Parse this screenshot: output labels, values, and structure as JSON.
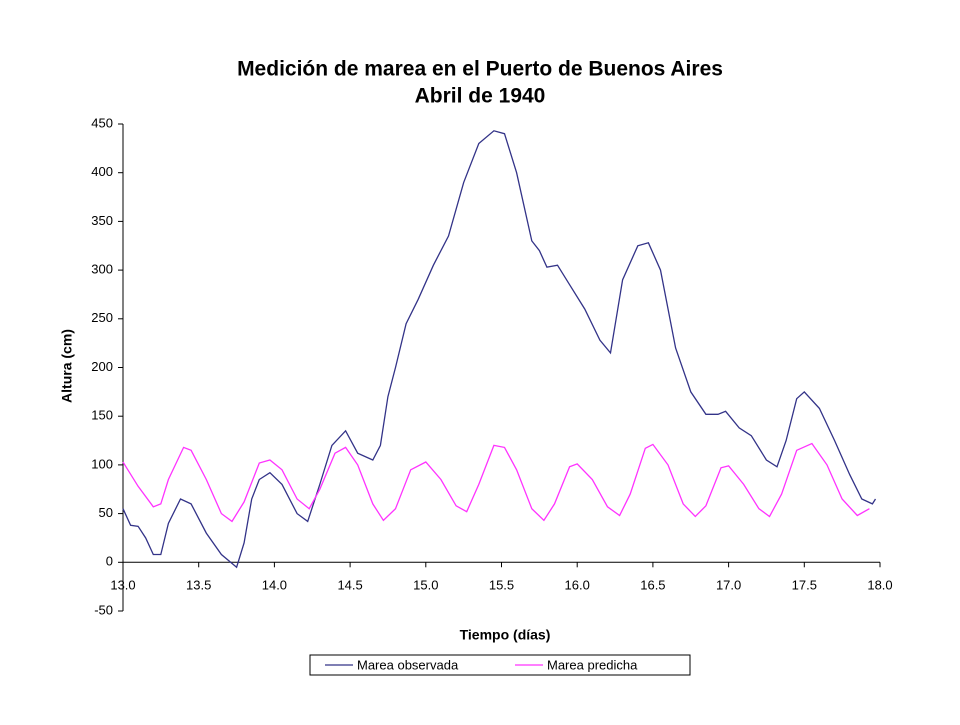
{
  "chart_data": {
    "type": "line",
    "title": "Medición de marea en el Puerto de Buenos Aires",
    "subtitle": "Abril de 1940",
    "x_label": "Tiempo (días)",
    "y_label": "Altura (cm)",
    "xlim": [
      13,
      18
    ],
    "ylim": [
      -50,
      450
    ],
    "xticks": [
      {
        "value": 13,
        "label": "13.0"
      },
      {
        "value": 13.5,
        "label": "13.5"
      },
      {
        "value": 14,
        "label": "14.0"
      },
      {
        "value": 14.5,
        "label": "14.5"
      },
      {
        "value": 15,
        "label": "15.0"
      },
      {
        "value": 15.5,
        "label": "15.5"
      },
      {
        "value": 16,
        "label": "16.0"
      },
      {
        "value": 16.5,
        "label": "16.5"
      },
      {
        "value": 17,
        "label": "17.0"
      },
      {
        "value": 17.5,
        "label": "17.5"
      },
      {
        "value": 18,
        "label": "18.0"
      }
    ],
    "yticks": [
      -50,
      0,
      50,
      100,
      150,
      200,
      250,
      300,
      350,
      400,
      450
    ],
    "grid": false,
    "legend": "bottom",
    "series": [
      {
        "name": "Marea observada",
        "color": "#333388",
        "x": [
          13.0,
          13.05,
          13.1,
          13.15,
          13.2,
          13.25,
          13.3,
          13.38,
          13.45,
          13.55,
          13.65,
          13.75,
          13.8,
          13.85,
          13.9,
          13.97,
          14.05,
          14.15,
          14.22,
          14.3,
          14.38,
          14.47,
          14.55,
          14.65,
          14.7,
          14.75,
          14.8,
          14.87,
          14.95,
          15.05,
          15.15,
          15.25,
          15.35,
          15.45,
          15.52,
          15.6,
          15.7,
          15.75,
          15.8,
          15.87,
          15.95,
          16.05,
          16.15,
          16.22,
          16.3,
          16.4,
          16.47,
          16.55,
          16.65,
          16.75,
          16.85,
          16.93,
          16.98,
          17.07,
          17.15,
          17.25,
          17.32,
          17.38,
          17.45,
          17.5,
          17.6,
          17.7,
          17.8,
          17.88,
          17.95,
          17.97
        ],
        "values": [
          55,
          38,
          37,
          25,
          8,
          8,
          40,
          65,
          60,
          30,
          8,
          -5,
          20,
          65,
          85,
          92,
          80,
          50,
          42,
          80,
          120,
          135,
          112,
          105,
          120,
          170,
          200,
          245,
          270,
          305,
          335,
          390,
          430,
          443,
          440,
          400,
          330,
          320,
          303,
          305,
          285,
          260,
          228,
          215,
          290,
          325,
          328,
          300,
          220,
          175,
          152,
          152,
          155,
          138,
          130,
          105,
          98,
          125,
          168,
          175,
          158,
          125,
          90,
          65,
          60,
          65
        ]
      },
      {
        "name": "Marea predicha",
        "color": "#ff33ff",
        "x": [
          13.0,
          13.1,
          13.2,
          13.25,
          13.3,
          13.4,
          13.45,
          13.55,
          13.65,
          13.72,
          13.8,
          13.9,
          13.97,
          14.05,
          14.15,
          14.23,
          14.3,
          14.4,
          14.47,
          14.55,
          14.65,
          14.72,
          14.8,
          14.9,
          15.0,
          15.1,
          15.2,
          15.27,
          15.35,
          15.45,
          15.52,
          15.6,
          15.7,
          15.78,
          15.85,
          15.95,
          16.0,
          16.1,
          16.2,
          16.28,
          16.35,
          16.45,
          16.5,
          16.6,
          16.7,
          16.78,
          16.85,
          16.95,
          17.0,
          17.1,
          17.2,
          17.27,
          17.35,
          17.45,
          17.55,
          17.65,
          17.75,
          17.85,
          17.93
        ],
        "values": [
          103,
          78,
          57,
          60,
          85,
          118,
          115,
          85,
          50,
          42,
          62,
          102,
          105,
          95,
          65,
          55,
          75,
          112,
          118,
          100,
          60,
          43,
          55,
          95,
          103,
          85,
          58,
          52,
          80,
          120,
          118,
          95,
          55,
          43,
          60,
          98,
          101,
          85,
          57,
          48,
          70,
          117,
          121,
          100,
          60,
          47,
          58,
          97,
          99,
          80,
          55,
          47,
          70,
          115,
          122,
          100,
          65,
          48,
          55
        ]
      }
    ]
  }
}
